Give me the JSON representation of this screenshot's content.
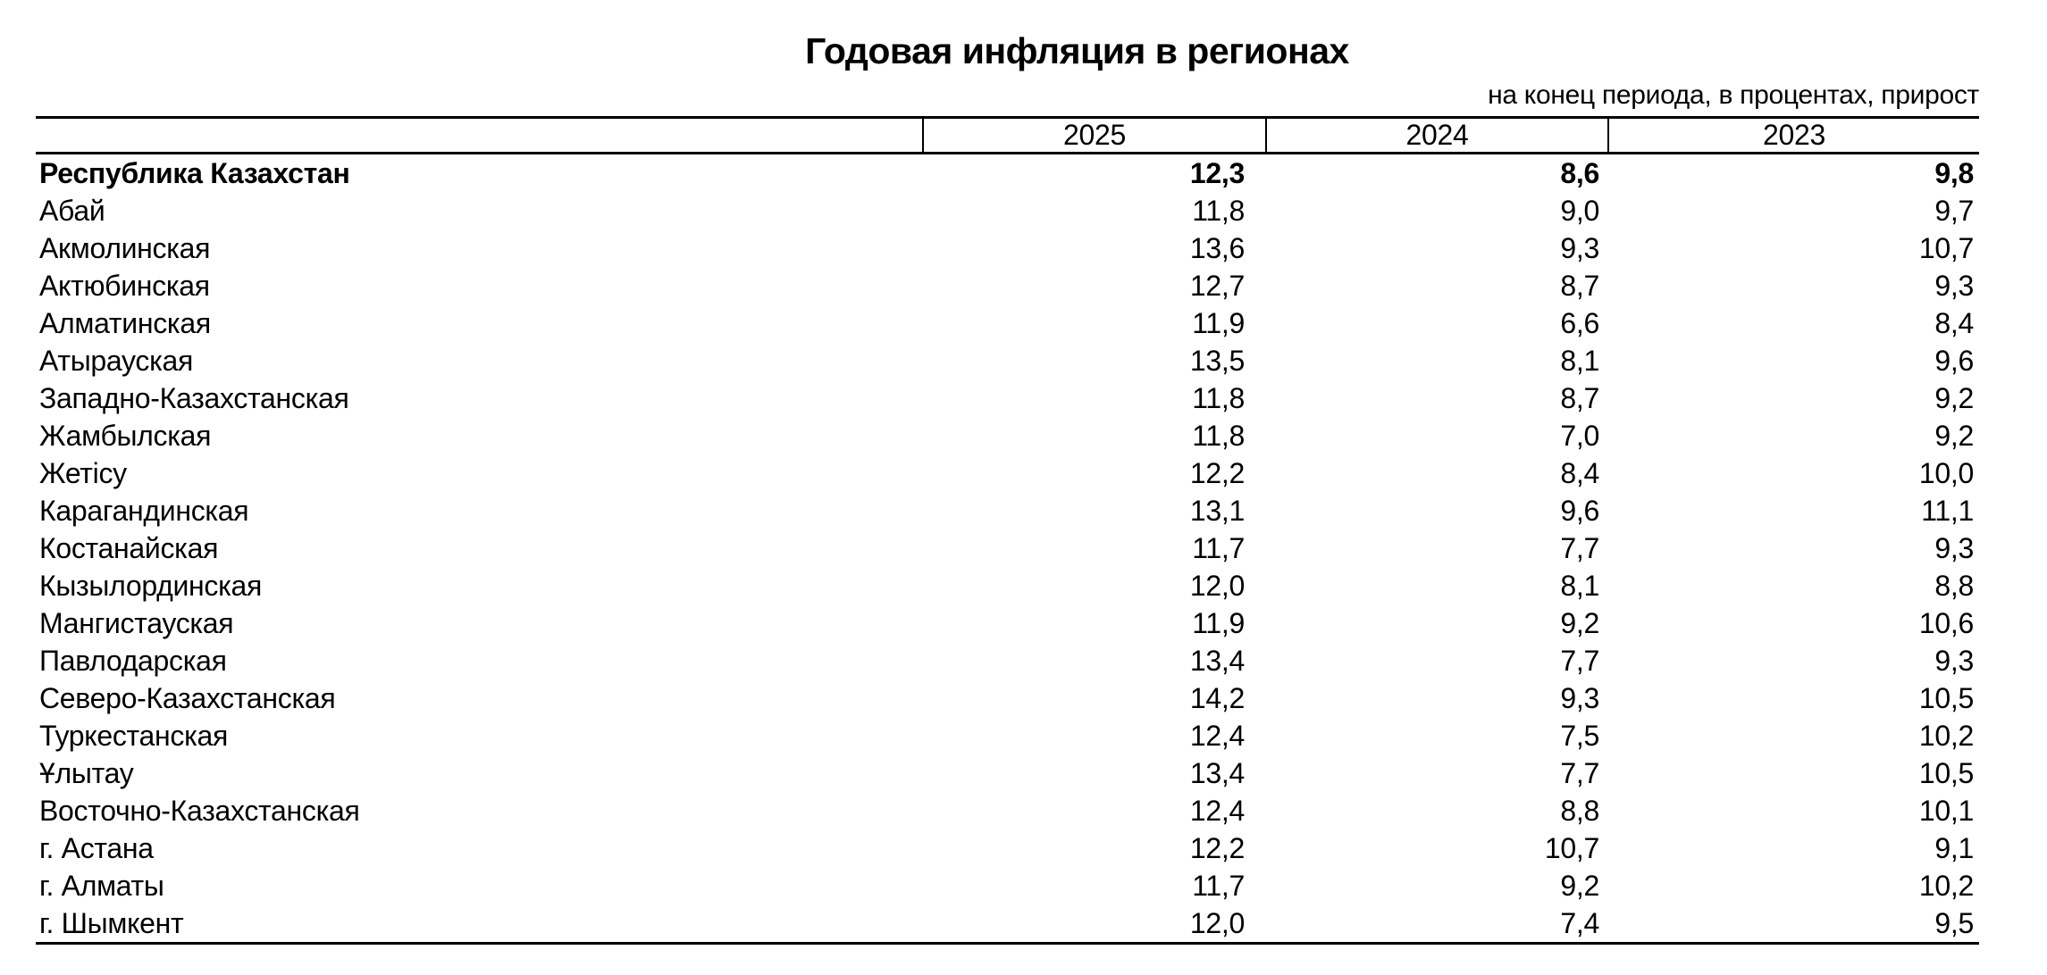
{
  "title": "Годовая инфляция в регионах",
  "subtitle": "на конец периода, в процентах, прирост",
  "colors": {
    "background": "#ffffff",
    "text": "#000000",
    "border": "#000000"
  },
  "table": {
    "columns": [
      "",
      "2025",
      "2024",
      "2023"
    ],
    "rows": [
      {
        "region": "Республика Казахстан",
        "bold": true,
        "values": [
          "12,3",
          "8,6",
          "9,8"
        ]
      },
      {
        "region": "Абай",
        "bold": false,
        "values": [
          "11,8",
          "9,0",
          "9,7"
        ]
      },
      {
        "region": "Акмолинская",
        "bold": false,
        "values": [
          "13,6",
          "9,3",
          "10,7"
        ]
      },
      {
        "region": "Актюбинская",
        "bold": false,
        "values": [
          "12,7",
          "8,7",
          "9,3"
        ]
      },
      {
        "region": "Алматинская",
        "bold": false,
        "values": [
          "11,9",
          "6,6",
          "8,4"
        ]
      },
      {
        "region": "Атырауская",
        "bold": false,
        "values": [
          "13,5",
          "8,1",
          "9,6"
        ]
      },
      {
        "region": "Западно-Казахстанская",
        "bold": false,
        "values": [
          "11,8",
          "8,7",
          "9,2"
        ]
      },
      {
        "region": "Жамбылская",
        "bold": false,
        "values": [
          "11,8",
          "7,0",
          "9,2"
        ]
      },
      {
        "region": "Жетісу",
        "bold": false,
        "values": [
          "12,2",
          "8,4",
          "10,0"
        ]
      },
      {
        "region": "Карагандинская",
        "bold": false,
        "values": [
          "13,1",
          "9,6",
          "11,1"
        ]
      },
      {
        "region": "Костанайская",
        "bold": false,
        "values": [
          "11,7",
          "7,7",
          "9,3"
        ]
      },
      {
        "region": "Кызылординская",
        "bold": false,
        "values": [
          "12,0",
          "8,1",
          "8,8"
        ]
      },
      {
        "region": "Мангистауская",
        "bold": false,
        "values": [
          "11,9",
          "9,2",
          "10,6"
        ]
      },
      {
        "region": "Павлодарская",
        "bold": false,
        "values": [
          "13,4",
          "7,7",
          "9,3"
        ]
      },
      {
        "region": "Северо-Казахстанская",
        "bold": false,
        "values": [
          "14,2",
          "9,3",
          "10,5"
        ]
      },
      {
        "region": "Туркестанская",
        "bold": false,
        "values": [
          "12,4",
          "7,5",
          "10,2"
        ]
      },
      {
        "region": "Ұлытау",
        "bold": false,
        "values": [
          "13,4",
          "7,7",
          "10,5"
        ]
      },
      {
        "region": "Восточно-Казахстанская",
        "bold": false,
        "values": [
          "12,4",
          "8,8",
          "10,1"
        ]
      },
      {
        "region": "г. Астана",
        "bold": false,
        "values": [
          "12,2",
          "10,7",
          "9,1"
        ]
      },
      {
        "region": "г. Алматы",
        "bold": false,
        "values": [
          "11,7",
          "9,2",
          "10,2"
        ]
      },
      {
        "region": "г. Шымкент",
        "bold": false,
        "values": [
          "12,0",
          "7,4",
          "9,5"
        ]
      }
    ]
  },
  "chart_data": {
    "type": "table",
    "title": "Годовая инфляция в регионах",
    "subtitle": "на конец периода, в процентах, прирост",
    "columns": [
      "2025",
      "2024",
      "2023"
    ],
    "categories": [
      "Республика Казахстан",
      "Абай",
      "Акмолинская",
      "Актюбинская",
      "Алматинская",
      "Атырауская",
      "Западно-Казахстанская",
      "Жамбылская",
      "Жетісу",
      "Карагандинская",
      "Костанайская",
      "Кызылординская",
      "Мангистауская",
      "Павлодарская",
      "Северо-Казахстанская",
      "Туркестанская",
      "Ұлытау",
      "Восточно-Казахстанская",
      "г. Астана",
      "г. Алматы",
      "г. Шымкент"
    ],
    "series": [
      {
        "name": "2025",
        "values": [
          12.3,
          11.8,
          13.6,
          12.7,
          11.9,
          13.5,
          11.8,
          11.8,
          12.2,
          13.1,
          11.7,
          12.0,
          11.9,
          13.4,
          14.2,
          12.4,
          13.4,
          12.4,
          12.2,
          11.7,
          12.0
        ]
      },
      {
        "name": "2024",
        "values": [
          8.6,
          9.0,
          9.3,
          8.7,
          6.6,
          8.1,
          8.7,
          7.0,
          8.4,
          9.6,
          7.7,
          8.1,
          9.2,
          7.7,
          9.3,
          7.5,
          7.7,
          8.8,
          10.7,
          9.2,
          7.4
        ]
      },
      {
        "name": "2023",
        "values": [
          9.8,
          9.7,
          10.7,
          9.3,
          8.4,
          9.6,
          9.2,
          9.2,
          10.0,
          11.1,
          9.3,
          8.8,
          10.6,
          9.3,
          10.5,
          10.2,
          10.5,
          10.1,
          9.1,
          10.2,
          9.5
        ]
      }
    ]
  }
}
